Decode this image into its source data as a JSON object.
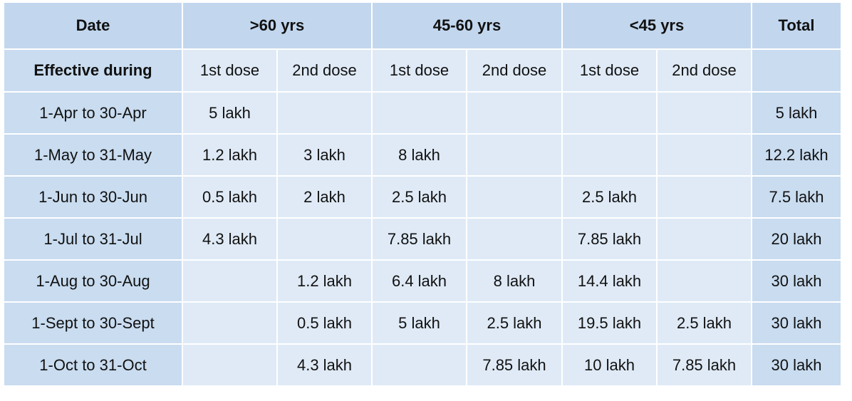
{
  "header": {
    "cells": [
      "Date",
      ">60 yrs",
      "45-60 yrs",
      "<45 yrs",
      "Total"
    ]
  },
  "subheader": {
    "cells": [
      "Effective during",
      "1st dose",
      "2nd dose",
      "1st dose",
      "2nd dose",
      "1st dose",
      "2nd dose",
      null
    ]
  },
  "table": {
    "rows": [
      [
        "1-Apr to 30-Apr",
        "5 lakh",
        null,
        null,
        null,
        null,
        null,
        "5 lakh"
      ],
      [
        "1-May to 31-May",
        "1.2 lakh",
        "3 lakh",
        "8 lakh",
        null,
        null,
        null,
        "12.2 lakh"
      ],
      [
        "1-Jun to 30-Jun",
        "0.5 lakh",
        "2 lakh",
        "2.5 lakh",
        null,
        "2.5 lakh",
        null,
        "7.5 lakh"
      ],
      [
        "1-Jul to 31-Jul",
        "4.3 lakh",
        null,
        "7.85 lakh",
        null,
        "7.85 lakh",
        null,
        "20 lakh"
      ],
      [
        "1-Aug to 30-Aug",
        null,
        "1.2 lakh",
        "6.4 lakh",
        "8 lakh",
        "14.4 lakh",
        null,
        "30 lakh"
      ],
      [
        "1-Sept to 30-Sept",
        null,
        "0.5 lakh",
        "5 lakh",
        "2.5 lakh",
        "19.5 lakh",
        "2.5 lakh",
        "30 lakh"
      ],
      [
        "1-Oct to 31-Oct",
        null,
        "4.3 lakh",
        null,
        "7.85 lakh",
        "10 lakh",
        "7.85 lakh",
        "30 lakh"
      ]
    ]
  }
}
